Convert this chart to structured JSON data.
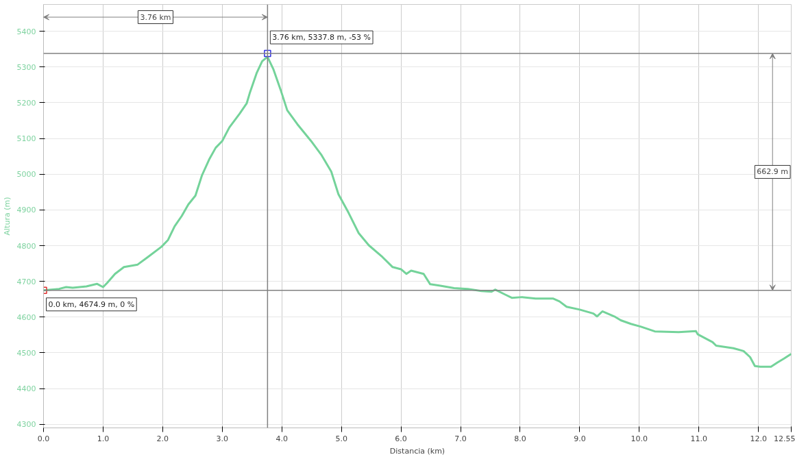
{
  "chart_data": {
    "type": "line",
    "xlabel": "Distancia (km)",
    "ylabel": "Altura (m)",
    "x": [
      0,
      0.26,
      0.38,
      0.49,
      0.72,
      0.9,
      1.0,
      1.07,
      1.2,
      1.35,
      1.58,
      1.75,
      1.98,
      2.09,
      2.2,
      2.32,
      2.43,
      2.55,
      2.66,
      2.78,
      2.89,
      3.0,
      3.12,
      3.29,
      3.41,
      3.46,
      3.58,
      3.67,
      3.75,
      3.76,
      3.86,
      3.98,
      4.09,
      4.26,
      4.49,
      4.66,
      4.83,
      4.95,
      5.12,
      5.29,
      5.46,
      5.69,
      5.86,
      6.0,
      6.09,
      6.17,
      6.38,
      6.49,
      6.66,
      6.89,
      7.12,
      7.35,
      7.52,
      7.58,
      7.75,
      7.86,
      8.03,
      8.26,
      8.55,
      8.66,
      8.78,
      9.0,
      9.23,
      9.29,
      9.38,
      9.58,
      9.69,
      9.86,
      10.03,
      10.26,
      10.66,
      10.95,
      10.98,
      11.23,
      11.29,
      11.58,
      11.75,
      11.86,
      11.94,
      12.03,
      12.21,
      12.32,
      12.43,
      12.55
    ],
    "series": [
      {
        "color": "#74d39a",
        "values": [
          4675,
          4679,
          4684,
          4682,
          4686,
          4693,
          4684,
          4696,
          4721,
          4740,
          4747,
          4768,
          4797,
          4816,
          4854,
          4883,
          4915,
          4940,
          4997,
          5041,
          5074,
          5093,
          5131,
          5169,
          5198,
          5226,
          5284,
          5316,
          5327,
          5328,
          5293,
          5236,
          5179,
          5140,
          5093,
          5055,
          5007,
          4944,
          4892,
          4835,
          4801,
          4768,
          4740,
          4734,
          4721,
          4730,
          4721,
          4692,
          4688,
          4681,
          4679,
          4673,
          4671,
          4677,
          4663,
          4654,
          4656,
          4652,
          4652,
          4644,
          4629,
          4621,
          4610,
          4602,
          4616,
          4602,
          4591,
          4581,
          4573,
          4560,
          4558,
          4561,
          4552,
          4530,
          4520,
          4513,
          4505,
          4488,
          4463,
          4461,
          4461,
          4473,
          4484,
          4497
        ]
      }
    ],
    "xlim": [
      0,
      12.55
    ],
    "ylim": [
      4290,
      5475
    ],
    "xticks": [
      {
        "value": 0,
        "label": "0.0"
      },
      {
        "value": 1,
        "label": "1.0"
      },
      {
        "value": 2,
        "label": "2.0"
      },
      {
        "value": 3,
        "label": "3.0"
      },
      {
        "value": 4,
        "label": "4.0"
      },
      {
        "value": 5,
        "label": "5.0"
      },
      {
        "value": 6,
        "label": "6.0"
      },
      {
        "value": 7,
        "label": "7.0"
      },
      {
        "value": 8,
        "label": "8.0"
      },
      {
        "value": 9,
        "label": "9.0"
      },
      {
        "value": 10,
        "label": "10.0"
      },
      {
        "value": 11,
        "label": "11.0"
      },
      {
        "value": 12,
        "label": "12.0"
      },
      12.55
    ],
    "yticks": [
      4300,
      4400,
      4500,
      4600,
      4700,
      4800,
      4900,
      5000,
      5100,
      5200,
      5300,
      5400
    ],
    "ref_lines": [
      {
        "axis": "x",
        "value": 3.76,
        "color": "#808080"
      },
      {
        "axis": "y",
        "value": 5337.8,
        "color": "#808080"
      },
      {
        "axis": "y",
        "value": 4674.9,
        "color": "#808080"
      }
    ],
    "annotations": [
      {
        "text": "0.0 km, 4674.9 m, 0 %",
        "x": 0,
        "y": 4674.9
      },
      {
        "text": "3.76 km, 5337.8 m, -53 %",
        "x": 3.76,
        "y": 5337.8
      },
      "3.76 km",
      "662.9 m"
    ],
    "grid": true,
    "marker": "none",
    "line_style": "solid"
  }
}
